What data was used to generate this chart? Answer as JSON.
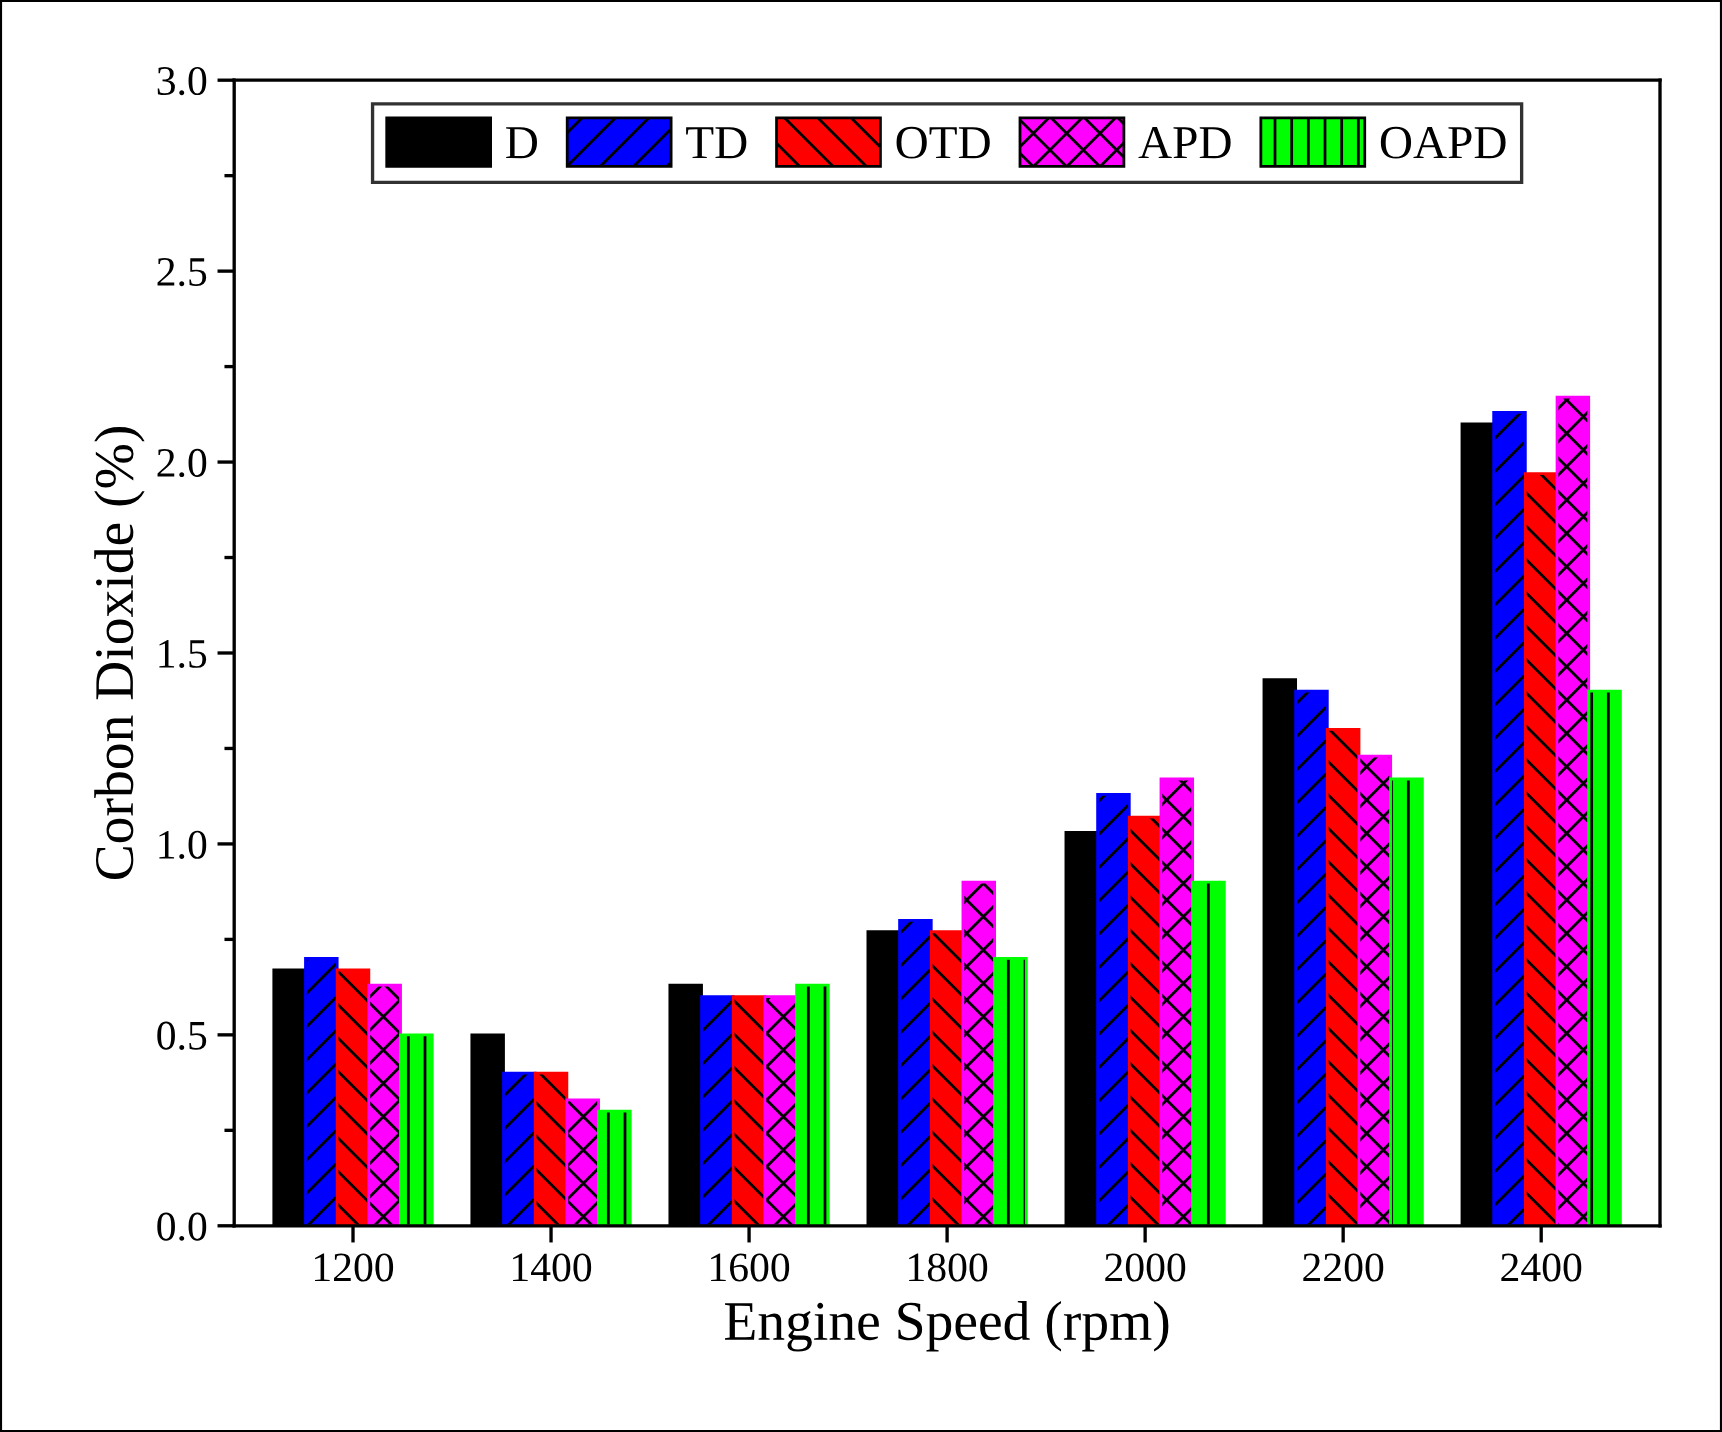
{
  "chart_data": {
    "type": "bar",
    "xlabel": "Engine Speed (rpm)",
    "ylabel": "Corbon Dioxide (%)",
    "categories": [
      "1200",
      "1400",
      "1600",
      "1800",
      "2000",
      "2200",
      "2400"
    ],
    "series": [
      {
        "name": "D",
        "color": "#000000",
        "values": [
          0.67,
          0.5,
          0.63,
          0.77,
          1.03,
          1.43,
          2.1
        ]
      },
      {
        "name": "TD",
        "color": "#0000ff",
        "values": [
          0.7,
          0.4,
          0.6,
          0.8,
          1.13,
          1.4,
          2.13
        ]
      },
      {
        "name": "OTD",
        "color": "#ff0000",
        "values": [
          0.67,
          0.4,
          0.6,
          0.77,
          1.07,
          1.3,
          1.97
        ]
      },
      {
        "name": "APD",
        "color": "#ff00ff",
        "values": [
          0.63,
          0.33,
          0.6,
          0.9,
          1.17,
          1.23,
          2.17
        ]
      },
      {
        "name": "OAPD",
        "color": "#00ff00",
        "values": [
          0.5,
          0.3,
          0.63,
          0.7,
          0.9,
          1.17,
          1.4
        ]
      }
    ],
    "ylim": [
      0,
      3.0
    ],
    "yticks": [
      {
        "value": 0,
        "label": "0.0"
      },
      0.5,
      {
        "value": 1,
        "label": "1.0"
      },
      1.5,
      {
        "value": 2,
        "label": "2.0"
      },
      2.5,
      {
        "value": 3,
        "label": "3.0"
      }
    ],
    "grid": false,
    "legend": "top"
  }
}
